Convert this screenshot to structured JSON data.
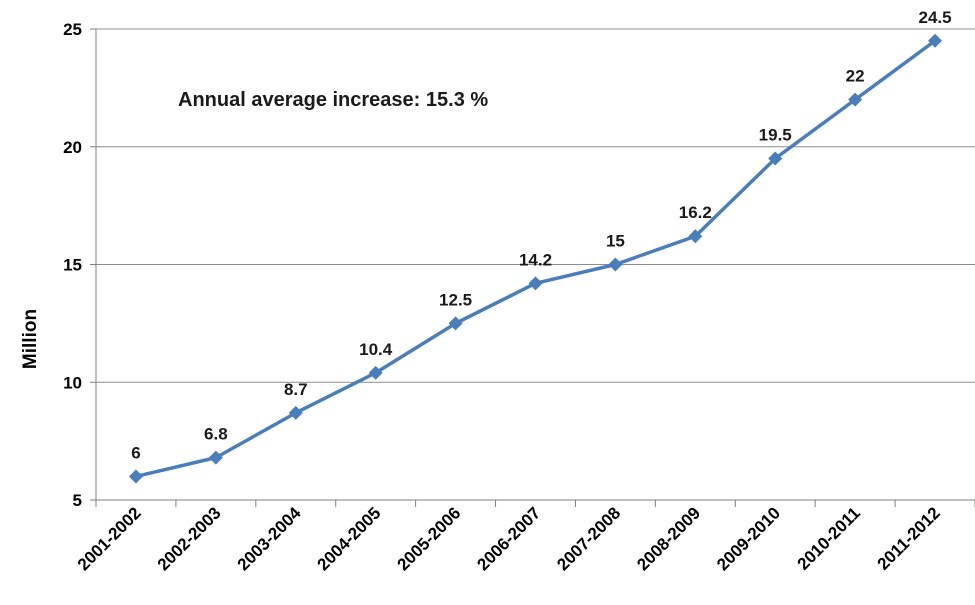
{
  "chart_data": {
    "type": "line",
    "title": "",
    "xlabel": "",
    "ylabel": "Million",
    "annotation": "Annual average increase: 15.3 %",
    "categories": [
      "2001-2002",
      "2002-2003",
      "2003-2004",
      "2004-2005",
      "2005-2006",
      "2006-2007",
      "2007-2008",
      "2008-2009",
      "2009-2010",
      "2010-2011",
      "2011-2012"
    ],
    "series": [
      {
        "values": [
          6,
          6.8,
          8.7,
          10.4,
          12.5,
          14.2,
          15,
          16.2,
          19.5,
          22,
          24.5
        ],
        "labels": [
          "6",
          "6.8",
          "8.7",
          "10.4",
          "12.5",
          "14.2",
          "15",
          "16.2",
          "19.5",
          "22",
          "24.5"
        ]
      }
    ],
    "ylim": [
      5,
      25
    ],
    "yticks": [
      "5",
      "10",
      "15",
      "20",
      "25"
    ],
    "grid": true,
    "legend": "none",
    "line_color": "#4a7ebb",
    "grid_color": "#8c8c8c"
  }
}
